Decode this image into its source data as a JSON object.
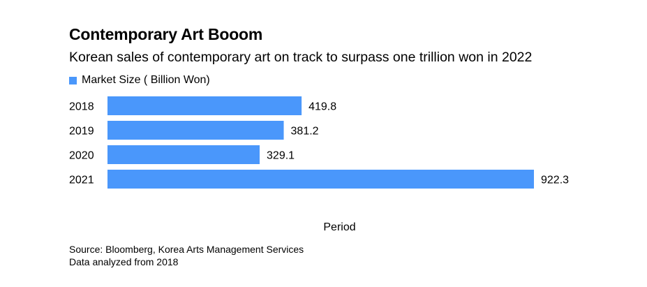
{
  "title": "Contemporary Art Booom",
  "subtitle": "Korean sales of contemporary art on track to surpass one trillion won in 2022",
  "source_line1": "Source: Bloomberg, Korea Arts Management Services",
  "source_line2": "Data analyzed from 2018",
  "colors": {
    "bar": "#4a97fb",
    "text": "#000000",
    "background": "#ffffff"
  },
  "chart_data": {
    "type": "bar",
    "orientation": "horizontal",
    "categories": [
      "2018",
      "2019",
      "2020",
      "2021"
    ],
    "series": [
      {
        "name": "Market Size ( Billion Won)",
        "values": [
          419.8,
          381.2,
          329.1,
          922.3
        ]
      }
    ],
    "value_labels": [
      "419.8",
      "381.2",
      "329.1",
      "922.3"
    ],
    "xlabel": "Period",
    "xlim": [
      0,
      922.3
    ],
    "grid": false,
    "legend": "top-left"
  }
}
